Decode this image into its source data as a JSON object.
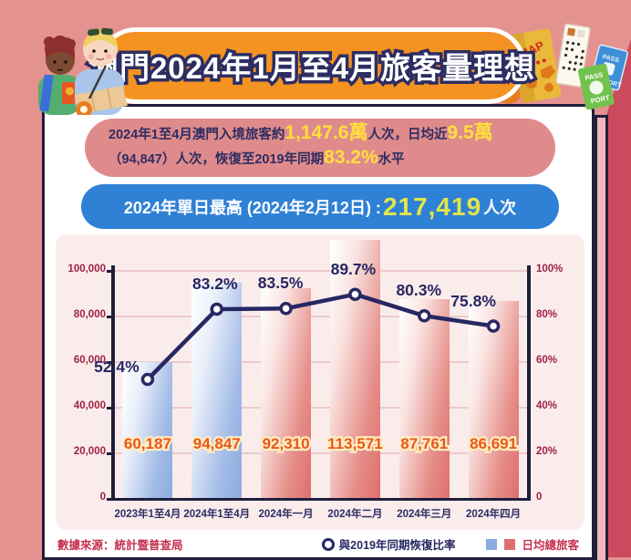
{
  "title": {
    "text": "澳門2024年1月至4月旅客量理想"
  },
  "summary_box": {
    "line1_part1": "2024年1至4月澳門入境旅客約",
    "line1_value1": "1,147.6萬",
    "line1_part2": "人次，日均近",
    "line1_value2": "9.5萬",
    "line2_part1": "（94,847）人次，恢復至2019年同期",
    "line2_value": "83.2%",
    "line2_part2": "水平"
  },
  "peak_box": {
    "label": "2024年單日最高 (2024年2月12日) : ",
    "value": "217,419",
    "suffix": "人次"
  },
  "chart_data": {
    "type": "bar+line",
    "categories": [
      "2023年1至4月",
      "2024年1至4月",
      "2024年一月",
      "2024年二月",
      "2024年三月",
      "2024年四月"
    ],
    "series": [
      {
        "name": "日均總旅客",
        "type": "bar",
        "values": [
          60187,
          94847,
          92310,
          113571,
          87761,
          86691
        ],
        "labels": [
          "60,187",
          "94,847",
          "92,310",
          "113,571",
          "87,761",
          "86,691"
        ],
        "color_keys": [
          "blue",
          "blue",
          "red",
          "red",
          "red",
          "red"
        ]
      },
      {
        "name": "與2019年同期恢復比率",
        "type": "line",
        "values": [
          52.4,
          83.2,
          83.5,
          89.7,
          80.3,
          75.8
        ],
        "labels": [
          "52.4%",
          "83.2%",
          "83.5%",
          "89.7%",
          "80.3%",
          "75.8%"
        ]
      }
    ],
    "left_axis": {
      "ticks": [
        "0",
        "20,000",
        "40,000",
        "60,000",
        "80,000",
        "100,000"
      ],
      "max": 100000
    },
    "right_axis": {
      "ticks": [
        "0",
        "20%",
        "40%",
        "60%",
        "80%",
        "100%"
      ],
      "max": 100
    },
    "grid": true,
    "legend_position": "bottom-right",
    "colors": {
      "bar_blue": "#8cabdf",
      "bar_red": "#de6f6e",
      "line": "#272763",
      "value_label": "#e9571d",
      "axis": "#1f1f3c",
      "tick_label": "#9d2143"
    }
  },
  "legend": {
    "line_label": "與2019年同期恢復比率",
    "bar_label": "日均總旅客"
  },
  "footer": {
    "source": "數據來源：統計暨普查局"
  },
  "decor": {
    "map_label": "MAP",
    "pass_word": "PASS",
    "port_word": "PORT"
  }
}
